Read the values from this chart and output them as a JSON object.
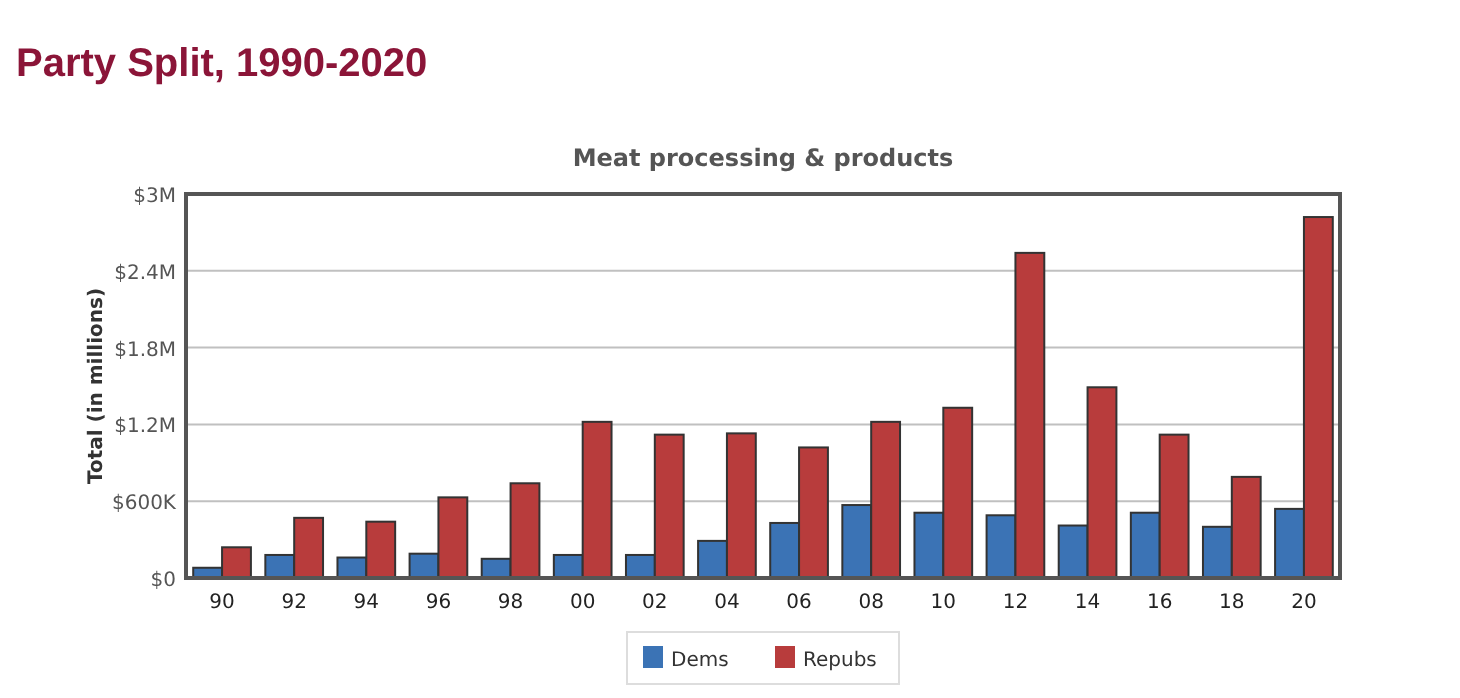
{
  "chart_data": {
    "type": "bar",
    "title": "Party Split, 1990-2020",
    "subtitle": "Meat processing & products",
    "ylabel": "Total (in millions)",
    "categories": [
      "90",
      "92",
      "94",
      "96",
      "98",
      "00",
      "02",
      "04",
      "06",
      "08",
      "10",
      "12",
      "14",
      "16",
      "18",
      "20"
    ],
    "series": [
      {
        "name": "Dems",
        "color": "#3b73b5",
        "values": [
          80000,
          180000,
          160000,
          190000,
          150000,
          180000,
          180000,
          290000,
          430000,
          570000,
          510000,
          490000,
          410000,
          510000,
          400000,
          540000
        ]
      },
      {
        "name": "Repubs",
        "color": "#b83c3c",
        "values": [
          240000,
          470000,
          440000,
          630000,
          740000,
          1220000,
          1120000,
          1130000,
          1020000,
          1220000,
          1330000,
          2540000,
          1490000,
          1120000,
          790000,
          2820000
        ]
      }
    ],
    "ylim": [
      0,
      3000000
    ],
    "yticks": [
      {
        "value": 0,
        "label": "$0"
      },
      {
        "value": 600000,
        "label": "$600K"
      },
      {
        "value": 1200000,
        "label": "$1.2M"
      },
      {
        "value": 1800000,
        "label": "$1.8M"
      },
      {
        "value": 2400000,
        "label": "$2.4M"
      },
      {
        "value": 3000000,
        "label": "$3M"
      }
    ],
    "grid": "y",
    "legend": "bottom"
  }
}
